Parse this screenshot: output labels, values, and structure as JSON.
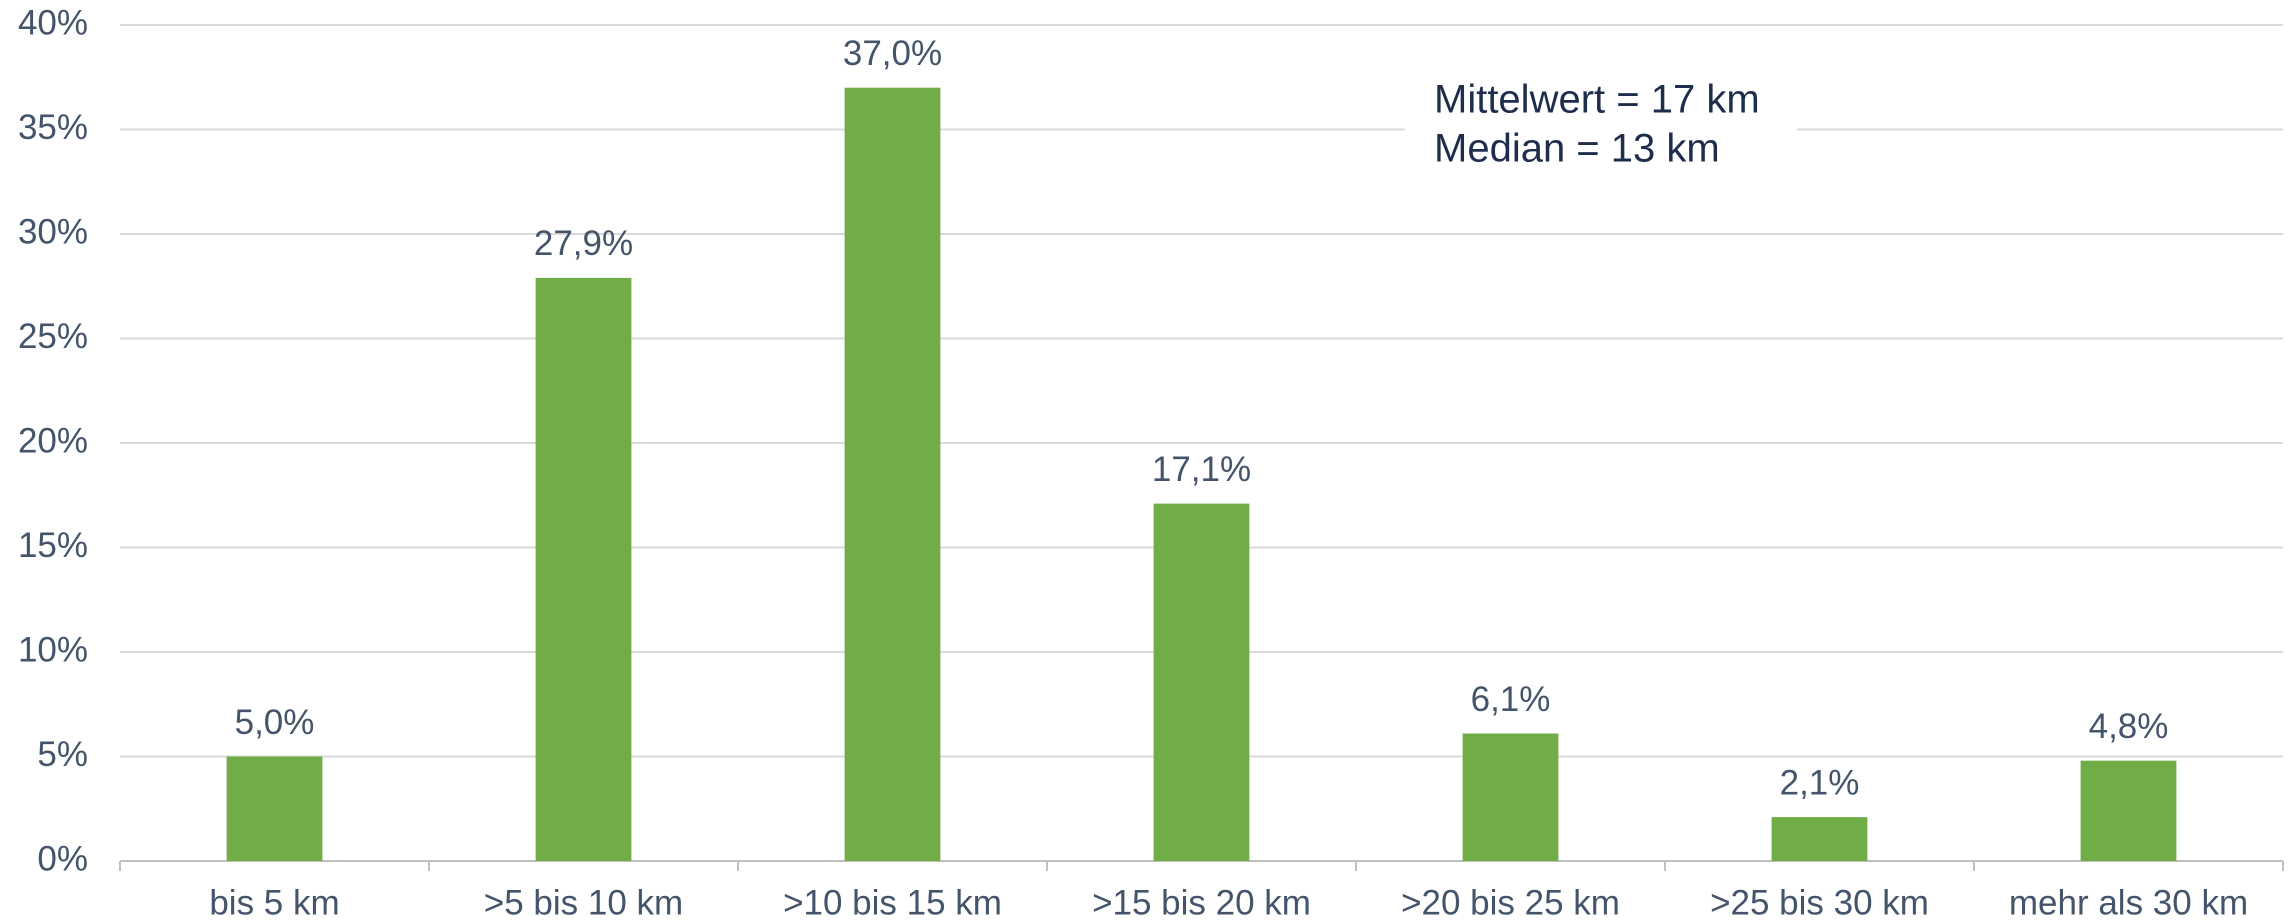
{
  "chart_data": {
    "type": "bar",
    "categories": [
      "bis 5 km",
      ">5 bis 10 km",
      ">10 bis 15 km",
      ">15 bis 20 km",
      ">20 bis 25 km",
      ">25 bis 30 km",
      "mehr als 30 km"
    ],
    "values": [
      5.0,
      27.9,
      37.0,
      17.1,
      6.1,
      2.1,
      4.8
    ],
    "value_labels": [
      "5,0%",
      "27,9%",
      "37,0%",
      "17,1%",
      "6,1%",
      "2,1%",
      "4,8%"
    ],
    "color": "#70ad47",
    "ylim": [
      0,
      40
    ],
    "yticks": [
      {
        "value": 0,
        "label": "0%"
      },
      {
        "value": 5,
        "label": "5%"
      },
      {
        "value": 10,
        "label": "10%"
      },
      {
        "value": 15,
        "label": "15%"
      },
      {
        "value": 20,
        "label": "20%"
      },
      {
        "value": 25,
        "label": "25%"
      },
      {
        "value": 30,
        "label": "30%"
      },
      {
        "value": 35,
        "label": "35%"
      },
      {
        "value": 40,
        "label": "40%"
      }
    ],
    "grid": true,
    "annotations": [
      "Mittelwert = 17 km",
      "Median = 13 km"
    ]
  }
}
